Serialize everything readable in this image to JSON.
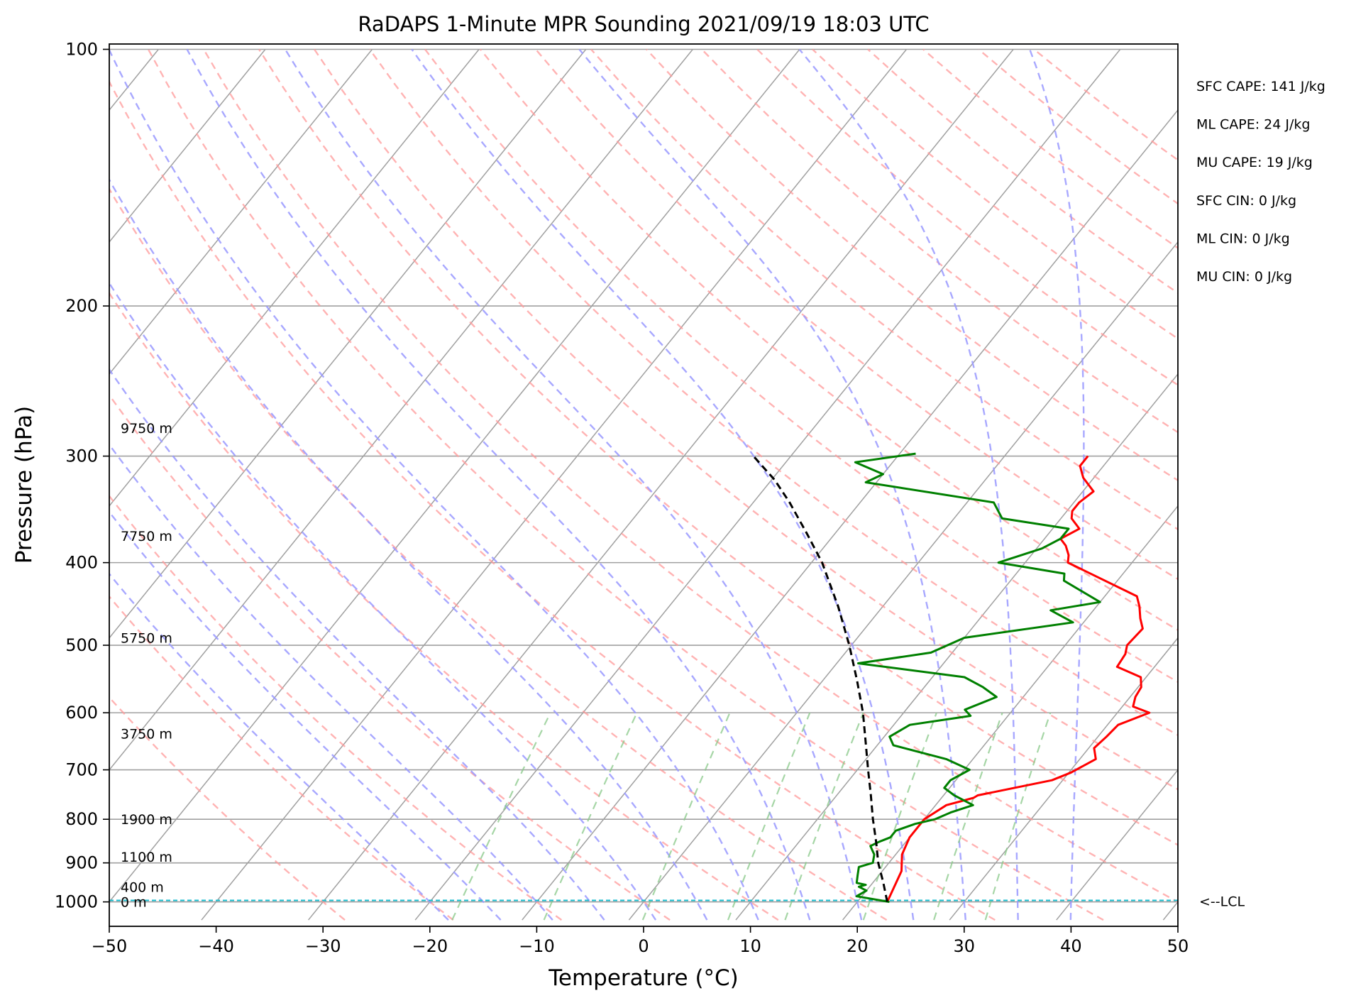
{
  "chart_data": {
    "type": "skew-t",
    "title": "RaDAPS 1-Minute MPR Sounding 2021/09/19 18:03 UTC",
    "xlabel": "Temperature (°C)",
    "ylabel": "Pressure (hPa)",
    "xlim": [
      -50,
      50
    ],
    "ylim": [
      1050,
      100
    ],
    "y_scale": "log",
    "x_ticks": [
      -50,
      -40,
      -30,
      -20,
      -10,
      0,
      10,
      20,
      30,
      40,
      50
    ],
    "x_tick_labels": [
      "−50",
      "−40",
      "−30",
      "−20",
      "−10",
      "0",
      "10",
      "20",
      "30",
      "40",
      "50"
    ],
    "y_ticks": [
      1000,
      900,
      800,
      700,
      600,
      500,
      400,
      300,
      200,
      100
    ],
    "y_tick_labels": [
      "1000",
      "900",
      "800",
      "700",
      "600",
      "500",
      "400",
      "300",
      "200",
      "100"
    ],
    "height_labels": [
      {
        "text": "0 m",
        "pressure": 1000
      },
      {
        "text": "400 m",
        "pressure": 960
      },
      {
        "text": "1100 m",
        "pressure": 885
      },
      {
        "text": "1900 m",
        "pressure": 800
      },
      {
        "text": "3750 m",
        "pressure": 635
      },
      {
        "text": "5750 m",
        "pressure": 490
      },
      {
        "text": "7750 m",
        "pressure": 372
      },
      {
        "text": "9750 m",
        "pressure": 278
      }
    ],
    "stats": [
      "SFC CAPE: 141 J/kg",
      "ML CAPE: 24 J/kg",
      "MU CAPE: 19 J/kg",
      "SFC CIN: 0 J/kg",
      "ML CIN: 0 J/kg",
      "MU CIN: 0 J/kg"
    ],
    "lcl": {
      "label": "<--LCL",
      "pressure": 996
    },
    "colors": {
      "temperature": "#ff0000",
      "dewpoint": "#008000",
      "parcel": "#000000",
      "isotherm": "#a0a0a0",
      "dry_adiabat": "#ff9999",
      "moist_adiabat": "#9999ff",
      "mixing_ratio": "#88c888",
      "lcl": "#17becf"
    },
    "series": [
      {
        "kind": "temperature",
        "points": [
          [
            1000,
            22.8
          ],
          [
            920,
            21.8
          ],
          [
            880,
            20.6
          ],
          [
            840,
            20.0
          ],
          [
            800,
            20.0
          ],
          [
            770,
            21.0
          ],
          [
            755,
            23.0
          ],
          [
            750,
            23.2
          ],
          [
            720,
            29.0
          ],
          [
            705,
            30.2
          ],
          [
            680,
            31.5
          ],
          [
            660,
            30.5
          ],
          [
            640,
            30.8
          ],
          [
            620,
            31.0
          ],
          [
            600,
            33.0
          ],
          [
            590,
            31.0
          ],
          [
            575,
            30.5
          ],
          [
            560,
            30.3
          ],
          [
            545,
            29.5
          ],
          [
            530,
            26.5
          ],
          [
            512,
            26.3
          ],
          [
            500,
            25.8
          ],
          [
            478,
            26.0
          ],
          [
            465,
            25.0
          ],
          [
            450,
            24.0
          ],
          [
            438,
            23.0
          ],
          [
            400,
            14.0
          ],
          [
            392,
            13.5
          ],
          [
            382,
            12.5
          ],
          [
            375,
            11.5
          ],
          [
            365,
            12.5
          ],
          [
            355,
            11.0
          ],
          [
            348,
            10.5
          ],
          [
            340,
            10.5
          ],
          [
            330,
            11.0
          ],
          [
            318,
            9.0
          ],
          [
            308,
            7.8
          ],
          [
            300,
            7.8
          ]
        ]
      },
      {
        "kind": "dewpoint",
        "points": [
          [
            1000,
            23.0
          ],
          [
            985,
            19.5
          ],
          [
            970,
            20.0
          ],
          [
            960,
            19.0
          ],
          [
            955,
            19.5
          ],
          [
            950,
            18.5
          ],
          [
            930,
            18.0
          ],
          [
            910,
            17.5
          ],
          [
            900,
            18.5
          ],
          [
            880,
            18.0
          ],
          [
            870,
            17.5
          ],
          [
            860,
            17.0
          ],
          [
            850,
            17.5
          ],
          [
            840,
            18.2
          ],
          [
            825,
            18.2
          ],
          [
            810,
            19.5
          ],
          [
            800,
            21.0
          ],
          [
            785,
            22.0
          ],
          [
            770,
            23.5
          ],
          [
            750,
            21.0
          ],
          [
            735,
            19.5
          ],
          [
            720,
            19.5
          ],
          [
            700,
            20.5
          ],
          [
            680,
            17.5
          ],
          [
            655,
            11.5
          ],
          [
            640,
            10.5
          ],
          [
            620,
            11.5
          ],
          [
            605,
            16.5
          ],
          [
            595,
            15.5
          ],
          [
            575,
            17.5
          ],
          [
            560,
            15.5
          ],
          [
            545,
            13.0
          ],
          [
            525,
            2.0
          ],
          [
            510,
            8.0
          ],
          [
            490,
            10.0
          ],
          [
            470,
            19.0
          ],
          [
            455,
            16.0
          ],
          [
            445,
            20.0
          ],
          [
            420,
            15.0
          ],
          [
            412,
            14.5
          ],
          [
            400,
            7.5
          ],
          [
            385,
            10.5
          ],
          [
            375,
            11.5
          ],
          [
            370,
            11.5
          ],
          [
            365,
            11.5
          ],
          [
            355,
            4.5
          ],
          [
            340,
            2.5
          ],
          [
            322,
            -11.0
          ],
          [
            315,
            -10.0
          ],
          [
            305,
            -13.5
          ],
          [
            298,
            -8.5
          ]
        ]
      },
      {
        "kind": "parcel",
        "points": [
          [
            1000,
            22.8
          ],
          [
            950,
            21.0
          ],
          [
            900,
            19.0
          ],
          [
            850,
            17.2
          ],
          [
            800,
            15.2
          ],
          [
            750,
            13.2
          ],
          [
            700,
            11.0
          ],
          [
            650,
            8.7
          ],
          [
            600,
            6.2
          ],
          [
            550,
            3.2
          ],
          [
            500,
            -0.2
          ],
          [
            450,
            -4.2
          ],
          [
            400,
            -9.0
          ],
          [
            370,
            -12.6
          ],
          [
            340,
            -16.6
          ],
          [
            320,
            -19.7
          ],
          [
            300,
            -23.5
          ]
        ]
      }
    ]
  }
}
